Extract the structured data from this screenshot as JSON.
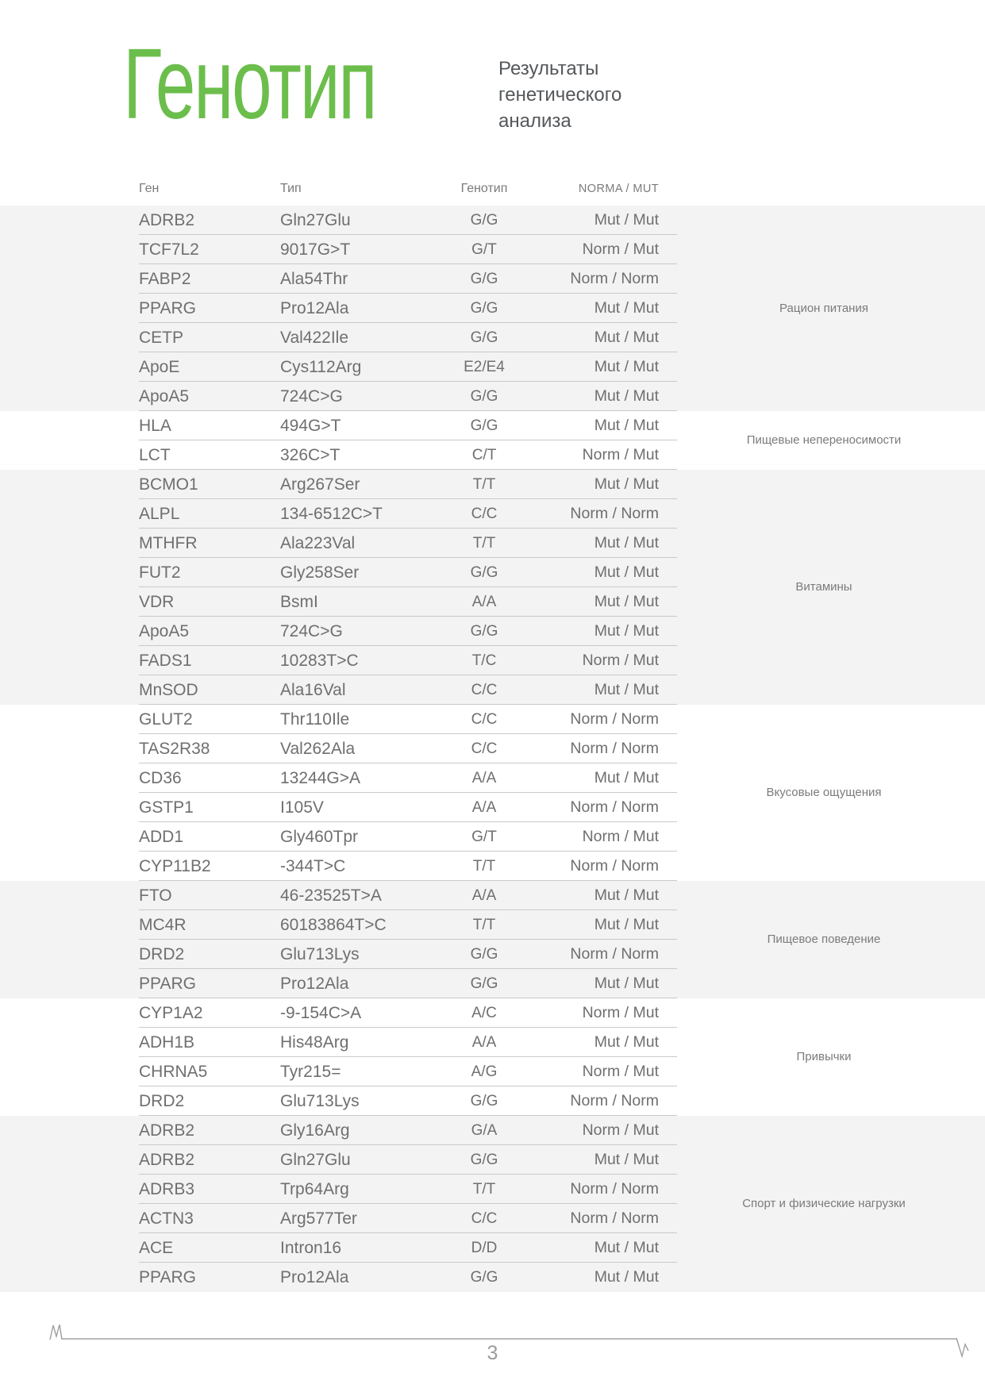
{
  "header": {
    "logo": "Генотип",
    "subtitle_lines": [
      "Результаты",
      "генетического",
      "анализа"
    ]
  },
  "colors": {
    "accent_green": "#6cbe4c",
    "band_gray": "#f3f3f3",
    "text_gray": "#6f6f6f"
  },
  "table": {
    "columns": [
      "Ген",
      "Тип",
      "Генотип",
      "NORMA / MUT"
    ],
    "groups": [
      {
        "label": "Рацион питания",
        "shaded": true,
        "rows": [
          {
            "gene": "ADRB2",
            "type": "Gln27Glu",
            "genotype": "G/G",
            "norma": "Mut / Mut"
          },
          {
            "gene": "TCF7L2",
            "type": "9017G>T",
            "genotype": "G/T",
            "norma": "Norm / Mut"
          },
          {
            "gene": "FABP2",
            "type": "Ala54Thr",
            "genotype": "G/G",
            "norma": "Norm / Norm"
          },
          {
            "gene": "PPARG",
            "type": "Pro12Ala",
            "genotype": "G/G",
            "norma": "Mut / Mut"
          },
          {
            "gene": "CETP",
            "type": "Val422Ile",
            "genotype": "G/G",
            "norma": "Mut / Mut"
          },
          {
            "gene": "ApoE",
            "type": "Cys112Arg",
            "genotype": "E2/E4",
            "norma": "Mut / Mut"
          },
          {
            "gene": "ApoA5",
            "type": "724C>G",
            "genotype": "G/G",
            "norma": "Mut / Mut"
          }
        ]
      },
      {
        "label": "Пищевые непереносимости",
        "shaded": false,
        "rows": [
          {
            "gene": "HLA",
            "type": "494G>T",
            "genotype": "G/G",
            "norma": "Mut / Mut"
          },
          {
            "gene": "LCT",
            "type": "326C>T",
            "genotype": "C/T",
            "norma": "Norm / Mut"
          }
        ]
      },
      {
        "label": "Витамины",
        "shaded": true,
        "rows": [
          {
            "gene": "BCMO1",
            "type": "Arg267Ser",
            "genotype": "T/T",
            "norma": "Mut / Mut"
          },
          {
            "gene": "ALPL",
            "type": "134-6512C>T",
            "genotype": "C/C",
            "norma": "Norm / Norm"
          },
          {
            "gene": "MTHFR",
            "type": "Ala223Val",
            "genotype": "T/T",
            "norma": "Mut / Mut"
          },
          {
            "gene": "FUT2",
            "type": "Gly258Ser",
            "genotype": "G/G",
            "norma": "Mut / Mut"
          },
          {
            "gene": "VDR",
            "type": "BsmI",
            "genotype": "A/A",
            "norma": "Mut / Mut"
          },
          {
            "gene": "ApoA5",
            "type": "724C>G",
            "genotype": "G/G",
            "norma": "Mut / Mut"
          },
          {
            "gene": "FADS1",
            "type": "10283T>C",
            "genotype": "T/C",
            "norma": "Norm / Mut"
          },
          {
            "gene": "MnSOD",
            "type": "Ala16Val",
            "genotype": "C/C",
            "norma": "Mut / Mut"
          }
        ]
      },
      {
        "label": "Вкусовые ощущения",
        "shaded": false,
        "rows": [
          {
            "gene": "GLUT2",
            "type": "Thr110Ile",
            "genotype": "C/C",
            "norma": "Norm / Norm"
          },
          {
            "gene": "TAS2R38",
            "type": "Val262Ala",
            "genotype": "C/C",
            "norma": "Norm / Norm"
          },
          {
            "gene": "CD36",
            "type": "13244G>A",
            "genotype": "A/A",
            "norma": "Mut / Mut"
          },
          {
            "gene": "GSTP1",
            "type": "I105V",
            "genotype": "A/A",
            "norma": "Norm / Norm"
          },
          {
            "gene": "ADD1",
            "type": "Gly460Tpr",
            "genotype": "G/T",
            "norma": "Norm / Mut"
          },
          {
            "gene": "CYP11B2",
            "type": "-344T>C",
            "genotype": "T/T",
            "norma": "Norm / Norm"
          }
        ]
      },
      {
        "label": "Пищевое поведение",
        "shaded": true,
        "rows": [
          {
            "gene": "FTO",
            "type": "46-23525T>A",
            "genotype": "A/A",
            "norma": "Mut / Mut"
          },
          {
            "gene": "MC4R",
            "type": "60183864T>C",
            "genotype": "T/T",
            "norma": "Mut / Mut"
          },
          {
            "gene": "DRD2",
            "type": "Glu713Lys",
            "genotype": "G/G",
            "norma": "Norm / Norm"
          },
          {
            "gene": "PPARG",
            "type": "Pro12Ala",
            "genotype": "G/G",
            "norma": "Mut / Mut"
          }
        ]
      },
      {
        "label": "Привычки",
        "shaded": false,
        "rows": [
          {
            "gene": "CYP1A2",
            "type": "-9-154C>A",
            "genotype": "A/C",
            "norma": "Norm / Mut"
          },
          {
            "gene": "ADH1B",
            "type": "His48Arg",
            "genotype": "A/A",
            "norma": "Mut / Mut"
          },
          {
            "gene": "CHRNA5",
            "type": "Tyr215=",
            "genotype": "A/G",
            "norma": "Norm / Mut"
          },
          {
            "gene": "DRD2",
            "type": "Glu713Lys",
            "genotype": "G/G",
            "norma": "Norm / Norm"
          }
        ]
      },
      {
        "label": "Спорт и физические нагрузки",
        "shaded": true,
        "rows": [
          {
            "gene": "ADRB2",
            "type": "Gly16Arg",
            "genotype": "G/A",
            "norma": "Norm / Mut"
          },
          {
            "gene": "ADRB2",
            "type": "Gln27Glu",
            "genotype": "G/G",
            "norma": "Mut / Mut"
          },
          {
            "gene": "ADRB3",
            "type": "Trp64Arg",
            "genotype": "T/T",
            "norma": "Norm / Norm"
          },
          {
            "gene": "ACTN3",
            "type": "Arg577Ter",
            "genotype": "C/C",
            "norma": "Norm / Norm"
          },
          {
            "gene": "ACE",
            "type": "Intron16",
            "genotype": "D/D",
            "norma": "Mut / Mut"
          },
          {
            "gene": "PPARG",
            "type": "Pro12Ala",
            "genotype": "G/G",
            "norma": "Mut / Mut"
          }
        ]
      }
    ]
  },
  "footer": {
    "page_number": "3"
  }
}
